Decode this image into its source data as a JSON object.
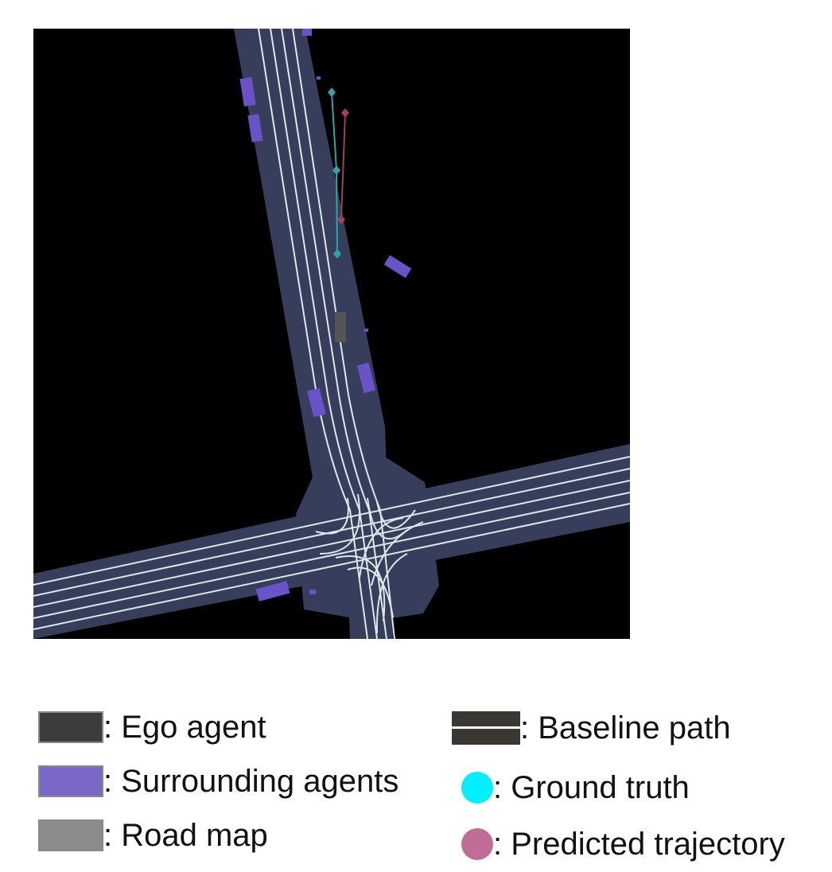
{
  "legend": {
    "ego_agent": {
      "label": ": Ego agent",
      "color": "#3c3c3c"
    },
    "surrounding_agents": {
      "label": ": Surrounding agents",
      "color": "#7b68c6"
    },
    "road_map": {
      "label": ": Road map",
      "color": "#8c8c8c"
    },
    "baseline_path": {
      "label": ": Baseline path",
      "color": "#3a3632",
      "line_color": "#ffffff"
    },
    "ground_truth": {
      "label": ": Ground truth",
      "color": "#00f0ff"
    },
    "predicted_trajectory": {
      "label": ": Predicted trajectory",
      "color": "#c06c94"
    }
  },
  "scene": {
    "background_color": "#000000",
    "road_color": "#363e5c",
    "lane_color": "#dde8e8",
    "ego_color": "#555555",
    "agent_color": "#6a52c8",
    "ground_truth_line_color": "#2ea6a6",
    "predicted_line_color": "#a0405c"
  }
}
